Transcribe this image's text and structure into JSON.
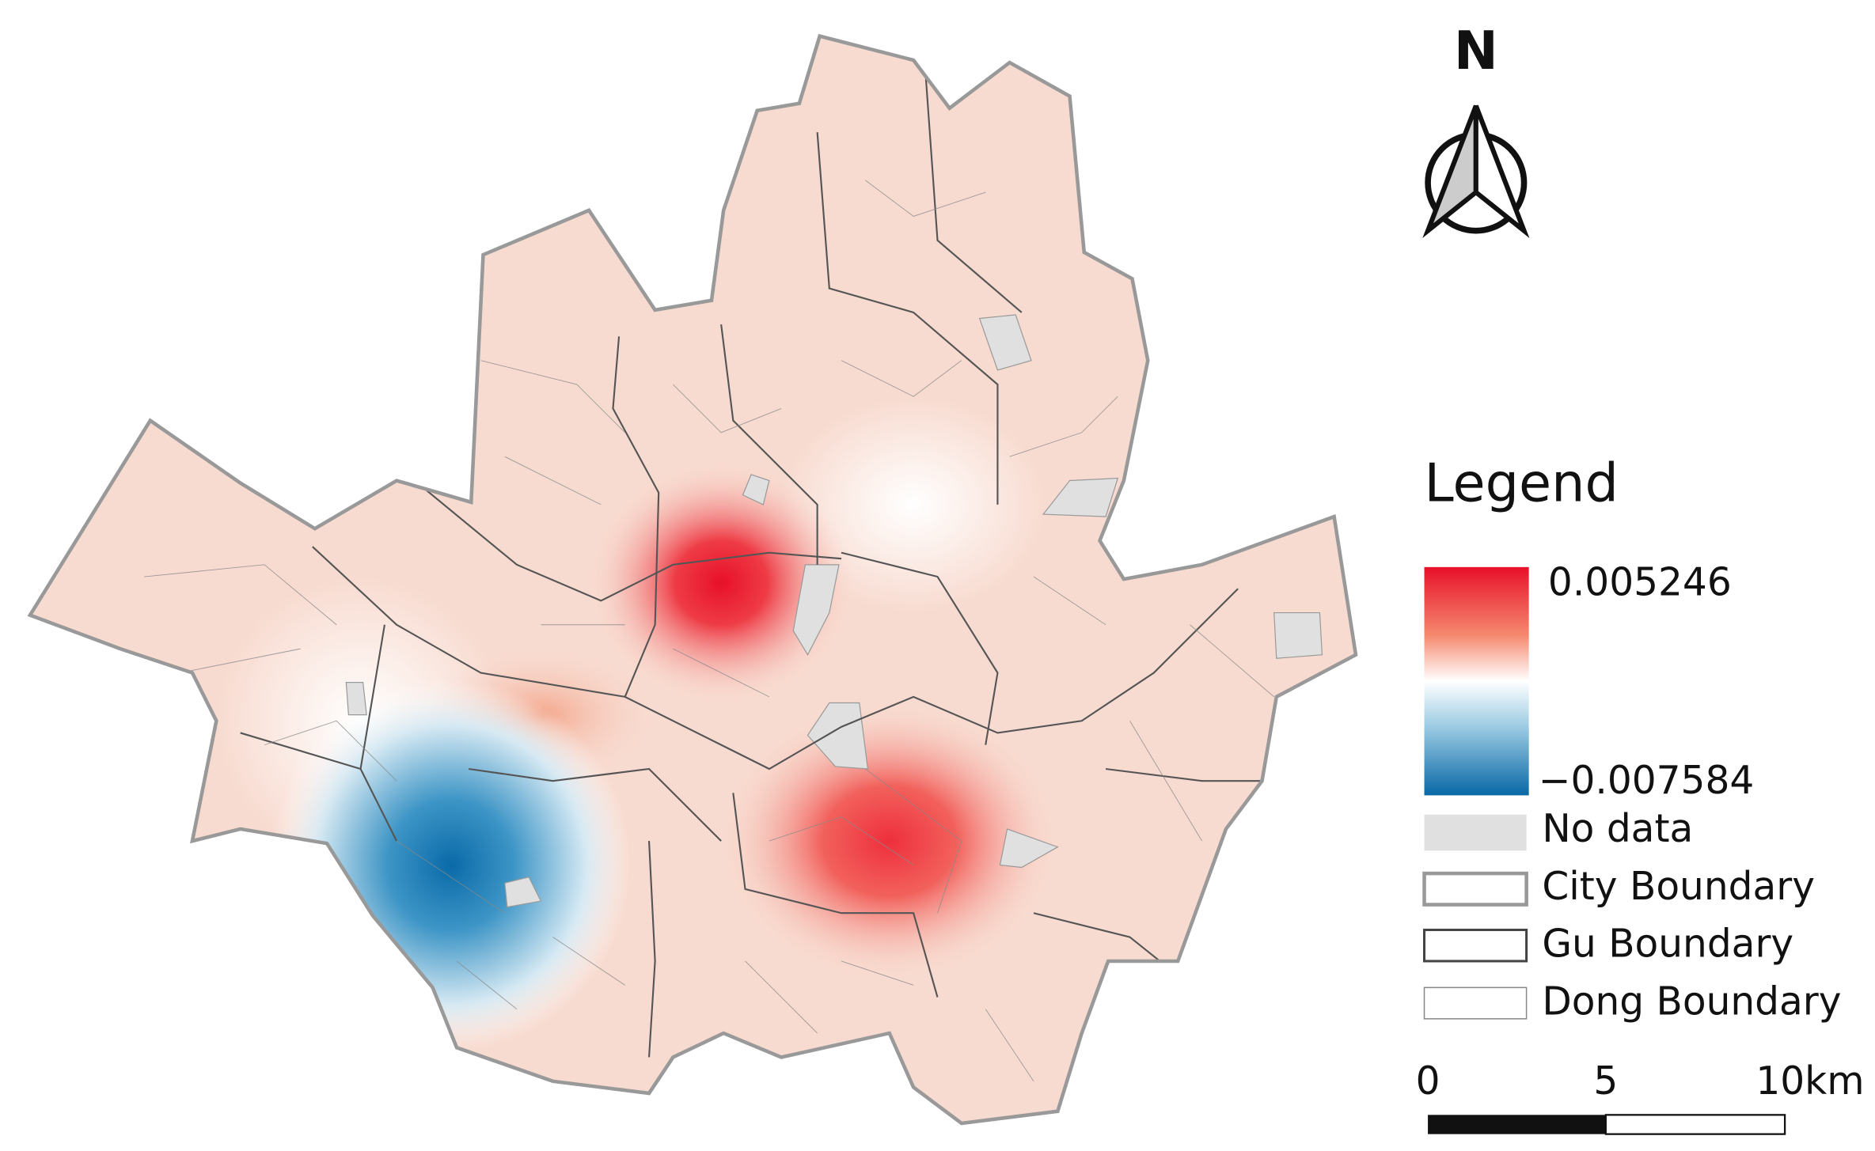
{
  "north": "N",
  "legend": {
    "title": "Legend",
    "max_label": "0.005246",
    "min_label": "−0.007584",
    "items": [
      "No data",
      "City Boundary",
      "Gu Boundary",
      "Dong Boundary"
    ]
  },
  "scale_bar": {
    "labels": [
      "0",
      "5",
      "10km"
    ]
  }
}
